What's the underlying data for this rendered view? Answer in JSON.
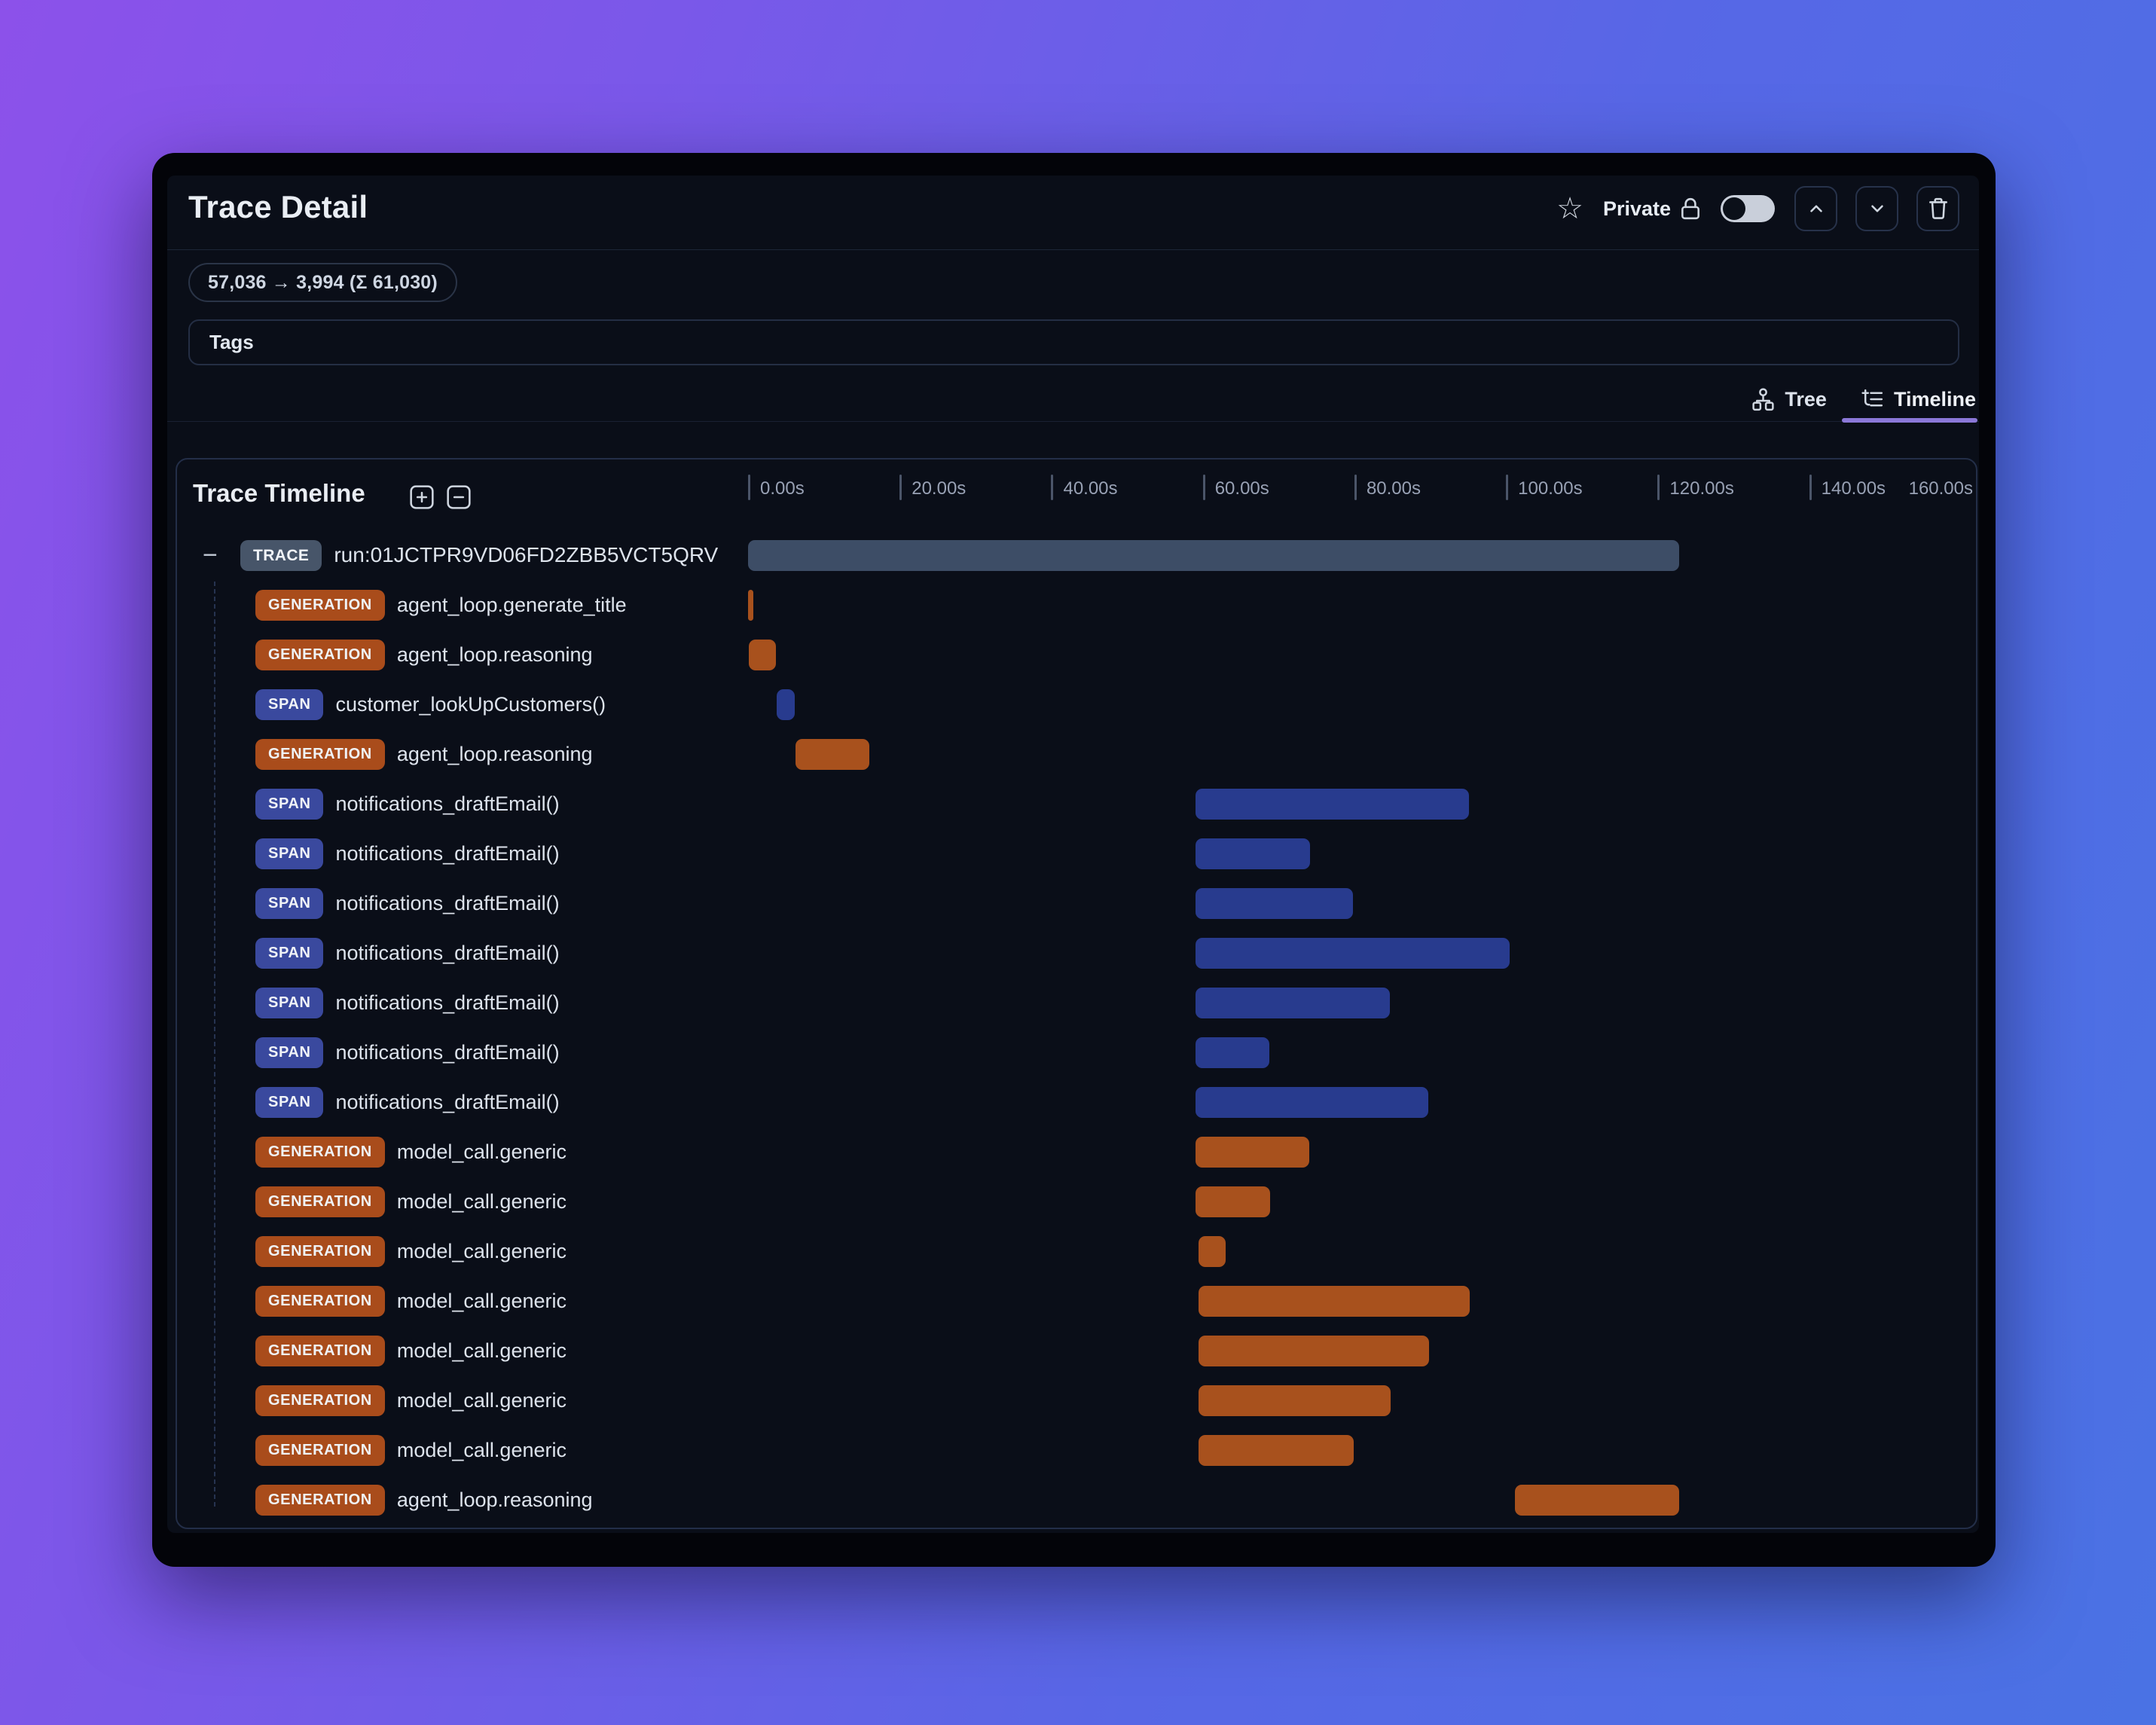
{
  "app": {
    "title": "Trace Detail"
  },
  "header": {
    "favorite_icon": "star-icon",
    "privacy": {
      "label": "Private",
      "icon": "lock-icon",
      "toggle_state": "off"
    },
    "actions": [
      {
        "name": "move-up",
        "icon": "chevron-up-icon"
      },
      {
        "name": "move-down",
        "icon": "chevron-down-icon"
      },
      {
        "name": "delete",
        "icon": "trash-icon"
      }
    ]
  },
  "glyphs": {
    "star": "☆",
    "collapse": "−"
  },
  "token_usage": {
    "text": "57,036 → 3,994 (Σ 61,030)"
  },
  "tags": {
    "label": "Tags"
  },
  "view_tabs": [
    {
      "label": "Tree",
      "icon": "org-tree-icon",
      "active": false
    },
    {
      "label": "Timeline",
      "icon": "list-tree-icon",
      "active": true
    }
  ],
  "timeline": {
    "title": "Trace Timeline",
    "controls": [
      {
        "name": "expand-all",
        "icon": "plus-box-icon"
      },
      {
        "name": "collapse-all",
        "icon": "minus-box-icon"
      }
    ],
    "axis": {
      "tick_labels": [
        "0.00s",
        "20.00s",
        "40.00s",
        "60.00s",
        "80.00s",
        "100.00s",
        "120.00s",
        "140.00s"
      ],
      "end_label": "160.00s",
      "tick_interval_seconds": 20,
      "total_seconds": 162
    },
    "rows": [
      {
        "type": "trace",
        "badge": "TRACE",
        "label": "run:01JCTPR9VD06FD2ZBB5VCT5QRV",
        "start": 0,
        "end": 123.0
      },
      {
        "type": "generation",
        "badge": "GENERATION",
        "label": "agent_loop.generate_title",
        "start": 0,
        "end": 0.6
      },
      {
        "type": "generation",
        "badge": "GENERATION",
        "label": "agent_loop.reasoning",
        "start": 0.1,
        "end": 3.7
      },
      {
        "type": "span",
        "badge": "SPAN",
        "label": "customer_lookUpCustomers()",
        "start": 3.8,
        "end": 6.2
      },
      {
        "type": "generation",
        "badge": "GENERATION",
        "label": "agent_loop.reasoning",
        "start": 6.3,
        "end": 16.0
      },
      {
        "type": "span",
        "badge": "SPAN",
        "label": "notifications_draftEmail()",
        "start": 59.1,
        "end": 95.2
      },
      {
        "type": "span",
        "badge": "SPAN",
        "label": "notifications_draftEmail()",
        "start": 59.1,
        "end": 74.2
      },
      {
        "type": "span",
        "badge": "SPAN",
        "label": "notifications_draftEmail()",
        "start": 59.1,
        "end": 79.9
      },
      {
        "type": "span",
        "badge": "SPAN",
        "label": "notifications_draftEmail()",
        "start": 59.1,
        "end": 100.6
      },
      {
        "type": "span",
        "badge": "SPAN",
        "label": "notifications_draftEmail()",
        "start": 59.1,
        "end": 84.8
      },
      {
        "type": "span",
        "badge": "SPAN",
        "label": "notifications_draftEmail()",
        "start": 59.1,
        "end": 68.9
      },
      {
        "type": "span",
        "badge": "SPAN",
        "label": "notifications_draftEmail()",
        "start": 59.1,
        "end": 89.9
      },
      {
        "type": "generation",
        "badge": "GENERATION",
        "label": "model_call.generic",
        "start": 59.1,
        "end": 74.1
      },
      {
        "type": "generation",
        "badge": "GENERATION",
        "label": "model_call.generic",
        "start": 59.1,
        "end": 69.0
      },
      {
        "type": "generation",
        "badge": "GENERATION",
        "label": "model_call.generic",
        "start": 59.5,
        "end": 63.1
      },
      {
        "type": "generation",
        "badge": "GENERATION",
        "label": "model_call.generic",
        "start": 59.5,
        "end": 95.3
      },
      {
        "type": "generation",
        "badge": "GENERATION",
        "label": "model_call.generic",
        "start": 59.5,
        "end": 90.0
      },
      {
        "type": "generation",
        "badge": "GENERATION",
        "label": "model_call.generic",
        "start": 59.5,
        "end": 84.9
      },
      {
        "type": "generation",
        "badge": "GENERATION",
        "label": "model_call.generic",
        "start": 59.5,
        "end": 80.0
      },
      {
        "type": "generation",
        "badge": "GENERATION",
        "label": "agent_loop.reasoning",
        "start": 101.3,
        "end": 123.0
      }
    ]
  },
  "colors": {
    "background_gradient_start": "#8c51ea",
    "background_gradient_end": "#4a72e4",
    "panel_bg": "#0a0e18",
    "badge_trace": "#475569",
    "badge_generation": "#a94c1b",
    "badge_span": "#3a499e",
    "bar_trace": "#3d4d66",
    "bar_generation": "#a8511d",
    "bar_span": "#283b8e",
    "active_tab_underline": "#8b78d8"
  }
}
